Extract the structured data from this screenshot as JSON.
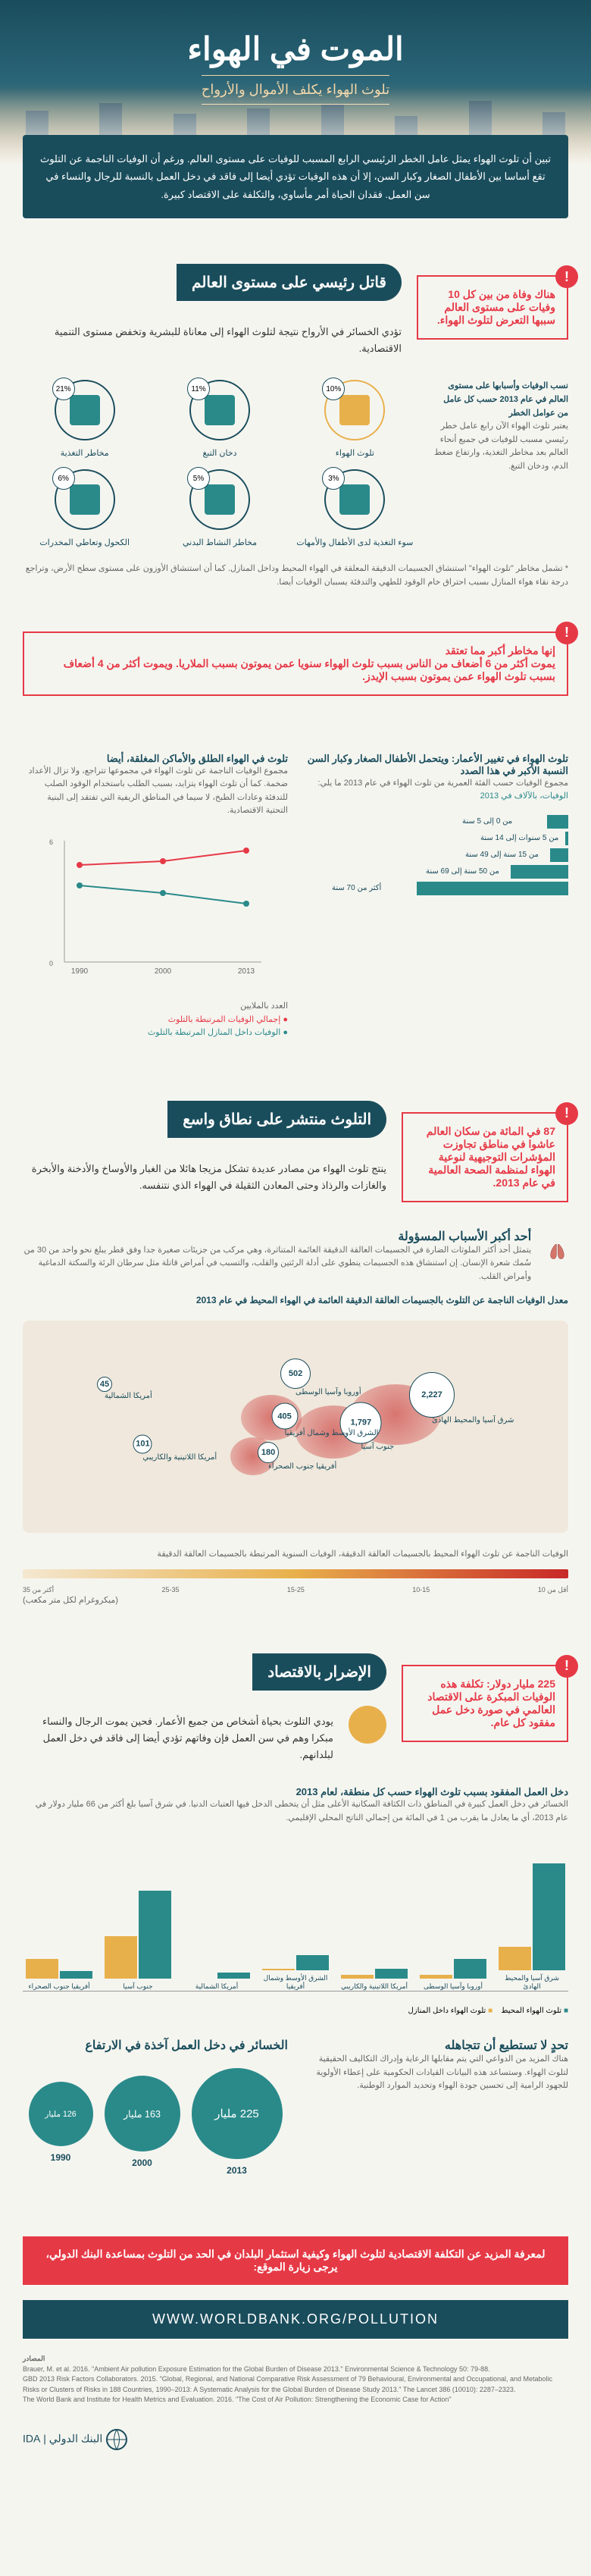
{
  "hero": {
    "title": "الموت في الهواء",
    "subtitle": "تلوث الهواء يكلف الأموال والأرواح"
  },
  "intro": "تبين أن تلوث الهواء يمثل عامل الخطر الرئيسي الرابع المسبب للوفيات على مستوى العالم. ورغم أن الوفيات الناجمة عن التلوث تقع أساسا بين الأطفال الصغار وكبار السن، إلا أن هذه الوفيات تؤدي أيضا إلى فاقد في دخل العمل بالنسبة للرجال والنساء في سن العمل. فقدان الحياة أمر مأساوي، والتكلفة على الاقتصاد كبيرة.",
  "s1": {
    "header": "قاتل رئيسي على مستوى العالم",
    "callout": "هناك وفاة من بين كل 10 وفيات على مستوى العالم سببها التعرض لتلوث الهواء.",
    "desc": "تؤدي الخسائر في الأرواح نتيجة لتلوث الهواء إلى معاناة للبشرية وتخفض مستوى التنمية الاقتصادية.",
    "factors_title": "نسب الوفيات وأسبابها على مستوى العالم في عام 2013 حسب كل عامل من عوامل الخطر",
    "factors_note": "يعتبر تلوث الهواء الآن رابع عامل خطر رئيسي مسبب للوفيات في جميع أنحاء العالم بعد مخاطر التغذية، وارتفاع ضغط الدم، ودخان التبغ.",
    "factors": [
      {
        "label": "تلوث الهواء",
        "pct": "10%",
        "color": "#e8b04b",
        "highlight": true
      },
      {
        "label": "دخان التبغ",
        "pct": "11%",
        "color": "#2a8a8a"
      },
      {
        "label": "مخاطر التغذية",
        "pct": "21%",
        "color": "#2a8a8a"
      },
      {
        "label": "سوء التغذية لدى الأطفال والأمهات",
        "pct": "3%",
        "color": "#2a8a8a"
      },
      {
        "label": "مخاطر النشاط البدني",
        "pct": "5%",
        "color": "#2a8a8a"
      },
      {
        "label": "الكحول وتعاطي المخدرات",
        "pct": "6%",
        "color": "#2a8a8a"
      }
    ],
    "footnote": "* تشمل مخاطر \"تلوث الهواء\" استنشاق الجسيمات الدقيقة المعلقة في الهواء المحيط وداخل المنازل. كما أن استنشاق الأوزون على مستوى سطح الأرض، وتراجع درجة نقاء هواء المنازل بسبب احتراق خام الوقود للطهي والتدفئة يسببان الوفيات أيضا."
  },
  "s2": {
    "callout": "إنها مخاطر أكبر مما تعتقد\nيموت أكثر من 6 أضعاف من الناس بسبب تلوث الهواء سنويا عمن يموتون بسبب الملاريا. ويموت أكثر من 4 أضعاف بسبب تلوث الهواء عمن يموتون بسبب الإيدز."
  },
  "s3": {
    "title_right": "تلوث الهواء في تغيير الأعمار: ويتحمل الأطفال الصغار وكبار السن النسبة الأكبر في هذا الصدد",
    "title_left": "تلوث في الهواء الطلق والأماكن المغلقة، أيضا",
    "left_text": "مجموع الوفيات الناجمة عن تلوث الهواء في مجموعها تتراجع، ولا تزال الأعداد ضخمة. كما أن تلوث الهواء يتزايد، بسبب الطلب باستخدام الوقود الصلب للتدفئة وعادات الطبخ، لا سيما في المناطق الريفية التي تفتقد إلى البنية التحتية الاقتصادية.",
    "chart_title": "مجموع الوفيات الناجمة عن تلوث الهواء في عام 2013",
    "line_chart": {
      "years": [
        "1990",
        "2000",
        "2013"
      ],
      "series1": {
        "label": "إجمالي الوفيات المرتبطة بالتلوث",
        "values": [
          4.8,
          5.0,
          5.5
        ],
        "color": "#e63946"
      },
      "series2": {
        "label": "الوفيات داخل المنازل المرتبطة بالتلوث",
        "values": [
          3.8,
          3.4,
          2.9
        ],
        "color": "#2a8a8a"
      },
      "ylabel": "العدد بالملايين",
      "ylim": [
        0,
        6
      ]
    },
    "hbar": {
      "title": "مجموع الوفيات حسب الفئة العمرية من تلوث الهواء في عام 2013 ما يلي:",
      "unit": "الوفيات، بالآلاف في 2013",
      "rows": [
        {
          "label": "من 0 إلى 5 سنة",
          "value": 14
        },
        {
          "label": "من 5 سنوات إلى 14 سنة",
          "value": 2
        },
        {
          "label": "من 15 سنة إلى 49 سنة",
          "value": 12
        },
        {
          "label": "من 50 سنة إلى 69 سنة",
          "value": 38
        },
        {
          "label": "أكثر من 70 سنة",
          "value": 100
        }
      ],
      "color": "#2a8a8a"
    }
  },
  "s4": {
    "header": "التلوث منتشر على نطاق واسع",
    "callout": "87 في المائة من سكان العالم عاشوا في مناطق تجاوزت المؤشرات التوجيهية لنوعية الهواء لمنظمة الصحة العالمية في عام 2013.",
    "intro": "ينتج تلوث الهواء من مصادر عديدة تشكل مزيجا هائلا من الغبار والأوساخ والأدخنة والأبخرة والغازات والرذاذ وحتى المعادن الثقيلة في الهواء الذي نتنفسه.",
    "causes_title": "أحد أكبر الأسباب المسؤولة",
    "causes_text": "يتمثل أحد أكثر الملوثات الضارة في الجسيمات العالقة الدقيقة العائمة المتناثرة، وهي مركب من جزيئات صغيرة جدا وفق قطر يبلغ نحو واحد من 30 من سُمك شعرة الإنسان. إن استنشاق هذه الجسيمات ينطوي على أدلة الرئتين والقلب، والتسبب في أمراض قاتلة مثل سرطان الرئة والسكتة الدماغية وأمراض القلب.",
    "map_title": "معدل الوفيات الناجمة عن التلوث بالجسيمات العالقة الدقيقة العائمة في الهواء المحيط في عام 2013",
    "map_legend": "الوفيات الناجمة عن تلوث الهواء المحيط بالجسيمات العالقة الدقيقة، الوفيات السنوية المرتبطة بالجسيمات العالقة الدقيقة",
    "map_unit": "(ميكروغرام لكل متر مكعب)",
    "map_scale": [
      "أقل من 10",
      "10-15",
      "15-25",
      "25-35",
      "أكثر من 35"
    ],
    "map_bubbles": [
      {
        "region": "شرق آسيا والمحيط الهادئ",
        "value": "2,227",
        "x": 75,
        "y": 35,
        "size": 60
      },
      {
        "region": "جنوب آسيا",
        "value": "1,797",
        "x": 62,
        "y": 48,
        "size": 55
      },
      {
        "region": "أوروبا وآسيا الوسطى",
        "value": "502",
        "x": 50,
        "y": 25,
        "size": 40
      },
      {
        "region": "الشرق الأوسط وشمال أفريقيا",
        "value": "405",
        "x": 48,
        "y": 45,
        "size": 35
      },
      {
        "region": "أفريقيا جنوب الصحراء",
        "value": "180",
        "x": 45,
        "y": 62,
        "size": 28
      },
      {
        "region": "أمريكا اللاتينية والكاريبي",
        "value": "101",
        "x": 22,
        "y": 58,
        "size": 25
      },
      {
        "region": "أمريكا الشمالية",
        "value": "45",
        "x": 15,
        "y": 30,
        "size": 20
      }
    ]
  },
  "s5": {
    "header": "الإضرار بالاقتصاد",
    "callout": "225 مليار دولار: تكلفة هذه الوفيات المبكرة على الاقتصاد العالمي في صورة دخل عمل مفقود كل عام.",
    "intro": "يودي التلوث بحياة أشخاص من جميع الأعمار. فحين يموت الرجال والنساء مبكرا وهم في سن العمل فإن وفاتهم تؤدي أيضا إلى فاقد في دخل العمل لبلدانهم.",
    "chart_title": "دخل العمل المفقود بسبب تلوث الهواء حسب كل منطقة، لعام 2013",
    "chart_text": "الخسائر في دخل العمل كبيرة في المناطق ذات الكثافة السكانية الأعلى مثل أن يتخطى الدخل فيها العتبات الدنيا. في شرق آسيا بلغ أكثر من 66 مليار دولار في عام 2013، أي ما يعادل ما يقرب من 1 في المائة من إجمالي الناتج المحلي الإقليمي.",
    "vbar": {
      "regions": [
        "شرق آسيا والمحيط الهادئ",
        "أوروبا وآسيا الوسطى",
        "أمريكا اللاتينية والكاريبي",
        "الشرق الأوسط وشمال أفريقيا",
        "أمريكا الشمالية",
        "جنوب آسيا",
        "أفريقيا جنوب الصحراء"
      ],
      "series": [
        {
          "label": "تلوث الهواء المحيط",
          "color": "#2a8a8a"
        },
        {
          "label": "تلوث الهواء داخل المنازل",
          "color": "#e8b04b"
        }
      ],
      "values": [
        [
          55,
          12
        ],
        [
          10,
          2
        ],
        [
          5,
          2
        ],
        [
          8,
          1
        ],
        [
          3,
          0
        ],
        [
          45,
          22
        ],
        [
          4,
          10
        ]
      ],
      "ymax": 70
    },
    "ignore_title": "تحدٍ لا تستطيع أن تتجاهله",
    "ignore_text": "هناك المزيد من الدواعي التي يتم مقابلها الرعاية وإدراك التكاليف الحقيقية لتلوث الهواء. وستساعد هذه البيانات القيادات الحكومية على إعطاء الأولوية للجهود الرامية إلى تحسين جودة الهواء وتحديد الموارد الوطنية.",
    "circles_title": "الخسائر في دخل العمل آخذة في الارتفاع",
    "circles": [
      {
        "year": "2013",
        "value": "225 مليار",
        "size": 120
      },
      {
        "year": "2000",
        "value": "163 مليار",
        "size": 100
      },
      {
        "year": "1990",
        "value": "126 مليار",
        "size": 85
      }
    ]
  },
  "footer": {
    "cta": "لمعرفة المزيد عن التكلفة الاقتصادية لتلوث الهواء وكيفية استثمار البلدان في الحد من التلوث بمساعدة البنك الدولي، يرجى زيارة الموقع:",
    "url": "WWW.WORLDBANK.ORG/POLLUTION",
    "sources_title": "المصادر",
    "sources": "Brauer, M. et al. 2016. \"Ambient Air pollution Exposure Estimation for the Global Burden of Disease 2013.\" Environmental Science & Technology 50: 79-88.\nGBD 2013 Risk Factors Collaborators. 2015. \"Global, Regional, and National Comparative Risk Assessment of 79 Behavioural, Environmental and Occupational, and Metabolic Risks or Clusters of Risks in 188 Countries, 1990–2013: A Systematic Analysis for the Global Burden of Disease Study 2013.\" The Lancet 386 (10010): 2287–2323.\nThe World Bank and Institute for Health Metrics and Evaluation. 2016. \"The Cost of Air Pollution: Strengthening the Economic Case for Action\"",
    "logo": "البنك الدولي"
  }
}
